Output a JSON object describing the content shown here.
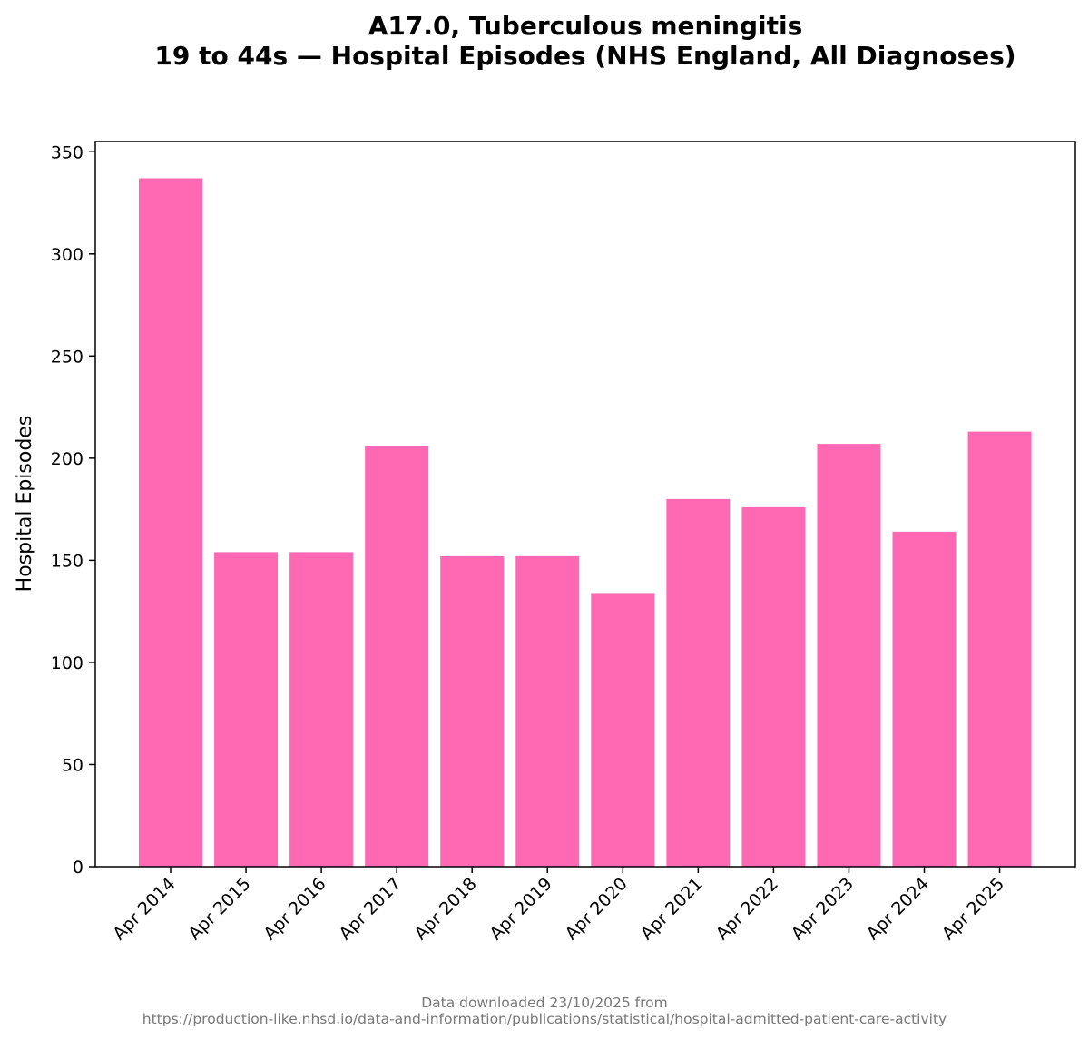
{
  "chart_data": {
    "type": "bar",
    "title_line1": "A17.0, Tuberculous meningitis",
    "title_line2": "19 to 44s — Hospital Episodes (NHS England, All Diagnoses)",
    "xlabel": "",
    "ylabel": "Hospital Episodes",
    "categories": [
      "Apr 2014",
      "Apr 2015",
      "Apr 2016",
      "Apr 2017",
      "Apr 2018",
      "Apr 2019",
      "Apr 2020",
      "Apr 2021",
      "Apr 2022",
      "Apr 2023",
      "Apr 2024",
      "Apr 2025"
    ],
    "values": [
      337,
      154,
      154,
      206,
      152,
      152,
      134,
      180,
      176,
      207,
      164,
      213
    ],
    "ylim": [
      0,
      355
    ],
    "yticks": [
      0,
      50,
      100,
      150,
      200,
      250,
      300,
      350
    ],
    "bar_color": "#ff69b4",
    "grid": false,
    "legend": "none"
  },
  "footer": {
    "line1": "Data downloaded 23/10/2025 from",
    "line2": "https://production-like.nhsd.io/data-and-information/publications/statistical/hospital-admitted-patient-care-activity"
  }
}
